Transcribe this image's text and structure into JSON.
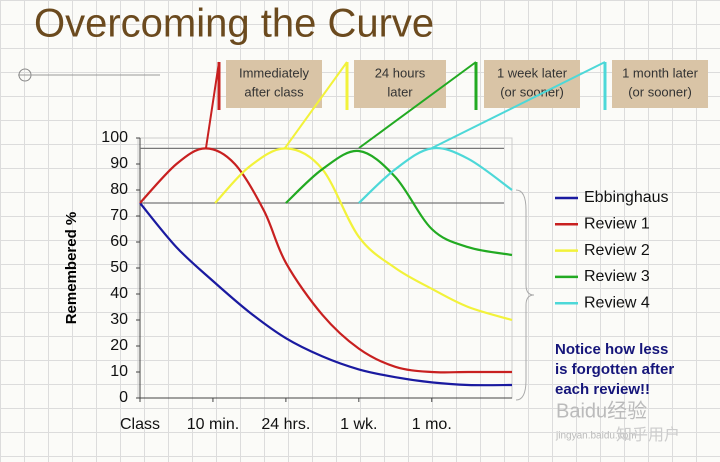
{
  "chart_data": {
    "type": "line",
    "title": "Overcoming the Curve",
    "y_label": "Remembered %",
    "xlim": [
      0,
      5.1
    ],
    "xticks": [
      {
        "value": 0,
        "label": "Class"
      },
      {
        "value": 1,
        "label": "10 min."
      },
      {
        "value": 2,
        "label": "24 hrs."
      },
      {
        "value": 3,
        "label": "1 wk."
      },
      {
        "value": 4,
        "label": "1 mo."
      }
    ],
    "ylim": [
      0,
      100
    ],
    "yticks": [
      0,
      10,
      20,
      30,
      40,
      50,
      60,
      70,
      80,
      90,
      100
    ],
    "reference_lines": [
      96,
      75
    ],
    "series": [
      {
        "name": "Ebbinghaus",
        "color": "#1a1aa0",
        "x": [
          0,
          0.5,
          1,
          1.5,
          2,
          2.5,
          3,
          3.5,
          4,
          4.5,
          5.1
        ],
        "values": [
          75,
          58,
          45,
          33,
          23,
          16,
          11,
          8,
          6,
          5,
          5
        ]
      },
      {
        "name": "Review 1",
        "color": "#c82020",
        "x": [
          0,
          0.5,
          0.9,
          1.3,
          1.7,
          2,
          2.5,
          3,
          3.5,
          4,
          4.5,
          5.1
        ],
        "values": [
          75,
          90,
          96,
          90,
          72,
          52,
          32,
          19,
          12,
          10,
          10,
          10
        ]
      },
      {
        "name": "Review 2",
        "color": "#f2f23a",
        "x": [
          1.03,
          1.5,
          2,
          2.5,
          3,
          3.5,
          4,
          4.5,
          5.1
        ],
        "values": [
          75,
          89,
          96,
          88,
          62,
          50,
          42,
          35,
          30
        ]
      },
      {
        "name": "Review 3",
        "color": "#22aa22",
        "x": [
          2,
          2.5,
          3,
          3.5,
          4,
          4.5,
          5.1
        ],
        "values": [
          75,
          88,
          95,
          85,
          65,
          58,
          55
        ]
      },
      {
        "name": "Review 4",
        "color": "#4dd8d8",
        "x": [
          3,
          3.5,
          4,
          4.5,
          5.1
        ],
        "values": [
          75,
          88,
          96,
          92,
          80
        ]
      }
    ],
    "callouts": [
      [
        "Immediately",
        "after class"
      ],
      [
        "24 hours",
        "later"
      ],
      [
        "1 week later",
        "(or sooner)"
      ],
      [
        "1 month later",
        "(or sooner)"
      ]
    ],
    "note": [
      "Notice how less",
      "is forgotten after",
      "each review!!"
    ]
  },
  "watermark": [
    "Baidu经验",
    "jingyan.baidu.com",
    "知乎用户"
  ]
}
